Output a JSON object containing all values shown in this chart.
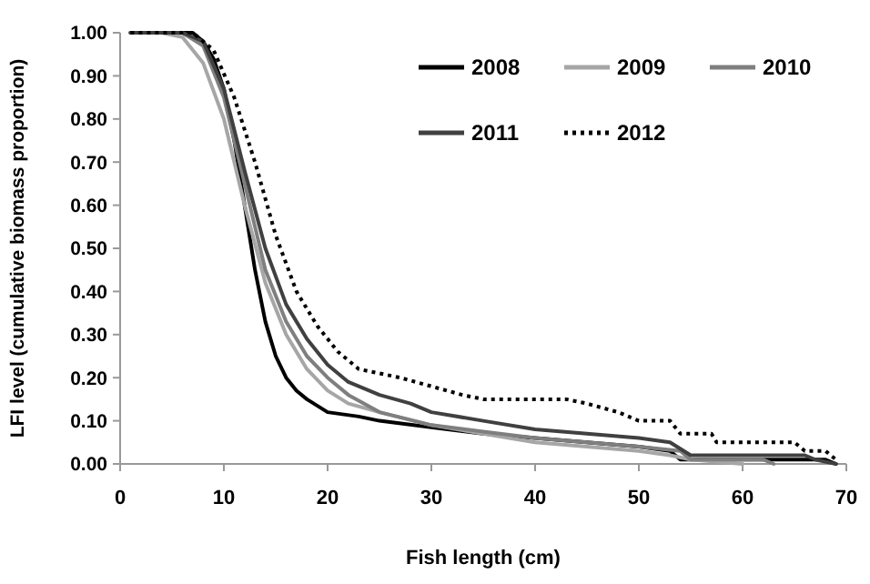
{
  "chart_data": {
    "type": "line",
    "xlabel": "Fish length (cm)",
    "ylabel": "LFI level (cumulative biomass proportion)",
    "xlim": [
      0,
      70
    ],
    "ylim": [
      0,
      1
    ],
    "xticks": [
      0,
      10,
      20,
      30,
      40,
      50,
      60,
      70
    ],
    "yticks": [
      {
        "value": 0,
        "label": "0.00"
      },
      {
        "value": 0.1,
        "label": "0.10"
      },
      {
        "value": 0.2,
        "label": "0.20"
      },
      {
        "value": 0.3,
        "label": "0.30"
      },
      {
        "value": 0.4,
        "label": "0.40"
      },
      {
        "value": 0.5,
        "label": "0.50"
      },
      {
        "value": 0.6,
        "label": "0.60"
      },
      {
        "value": 0.7,
        "label": "0.70"
      },
      {
        "value": 0.8,
        "label": "0.80"
      },
      {
        "value": 0.9,
        "label": "0.90"
      },
      {
        "value": 1,
        "label": "1.00"
      }
    ],
    "grid": false,
    "legend": "top right",
    "marker": "none",
    "series": [
      {
        "name": "2008",
        "color": "#000000",
        "line_style": "solid",
        "x": [
          1,
          5,
          7,
          8,
          9,
          10,
          11,
          12,
          13,
          14,
          15,
          16,
          17,
          18,
          20,
          23,
          25,
          30,
          35,
          40,
          45,
          50,
          53,
          54,
          60,
          65,
          68,
          69
        ],
        "values": [
          1,
          1,
          1,
          0.98,
          0.94,
          0.87,
          0.75,
          0.6,
          0.45,
          0.33,
          0.25,
          0.2,
          0.17,
          0.15,
          0.12,
          0.11,
          0.1,
          0.085,
          0.07,
          0.06,
          0.05,
          0.04,
          0.03,
          0.01,
          0.01,
          0.01,
          0.01,
          0
        ]
      },
      {
        "name": "2009",
        "color": "#a6a6a6",
        "line_style": "solid",
        "x": [
          1,
          4,
          6,
          8,
          10,
          12,
          14,
          16,
          18,
          20,
          22,
          25,
          30,
          35,
          40,
          45,
          50,
          53,
          55,
          60
        ],
        "values": [
          1,
          1,
          0.99,
          0.93,
          0.8,
          0.6,
          0.42,
          0.3,
          0.22,
          0.17,
          0.14,
          0.12,
          0.09,
          0.07,
          0.05,
          0.04,
          0.03,
          0.02,
          0.01,
          0
        ]
      },
      {
        "name": "2010",
        "color": "#7f7f7f",
        "line_style": "solid",
        "x": [
          1,
          6,
          8,
          10,
          12,
          14,
          16,
          18,
          20,
          22,
          25,
          30,
          35,
          40,
          45,
          50,
          54,
          55,
          62,
          63
        ],
        "values": [
          1,
          1,
          0.97,
          0.85,
          0.65,
          0.45,
          0.33,
          0.25,
          0.2,
          0.16,
          0.12,
          0.09,
          0.075,
          0.06,
          0.05,
          0.04,
          0.03,
          0.01,
          0.01,
          0
        ]
      },
      {
        "name": "2011",
        "color": "#404040",
        "line_style": "solid",
        "x": [
          1,
          6,
          8,
          10,
          12,
          14,
          16,
          18,
          20,
          22,
          25,
          28,
          30,
          35,
          40,
          45,
          50,
          53,
          55,
          60,
          66,
          67,
          69
        ],
        "values": [
          1,
          1,
          0.98,
          0.87,
          0.68,
          0.5,
          0.37,
          0.29,
          0.23,
          0.19,
          0.16,
          0.14,
          0.12,
          0.1,
          0.08,
          0.07,
          0.06,
          0.05,
          0.02,
          0.02,
          0.02,
          0.01,
          0
        ]
      },
      {
        "name": "2012",
        "color": "#000000",
        "line_style": "dotted",
        "x": [
          1,
          7,
          9,
          11,
          13,
          15,
          17,
          19,
          21,
          23,
          25,
          27,
          30,
          33,
          35,
          43,
          45,
          48,
          50,
          53,
          54,
          57,
          57.5,
          65,
          66,
          68,
          69
        ],
        "values": [
          1,
          1,
          0.96,
          0.85,
          0.7,
          0.53,
          0.4,
          0.32,
          0.26,
          0.22,
          0.21,
          0.2,
          0.18,
          0.16,
          0.15,
          0.15,
          0.14,
          0.12,
          0.1,
          0.1,
          0.07,
          0.07,
          0.05,
          0.05,
          0.03,
          0.03,
          0.01
        ]
      }
    ]
  }
}
